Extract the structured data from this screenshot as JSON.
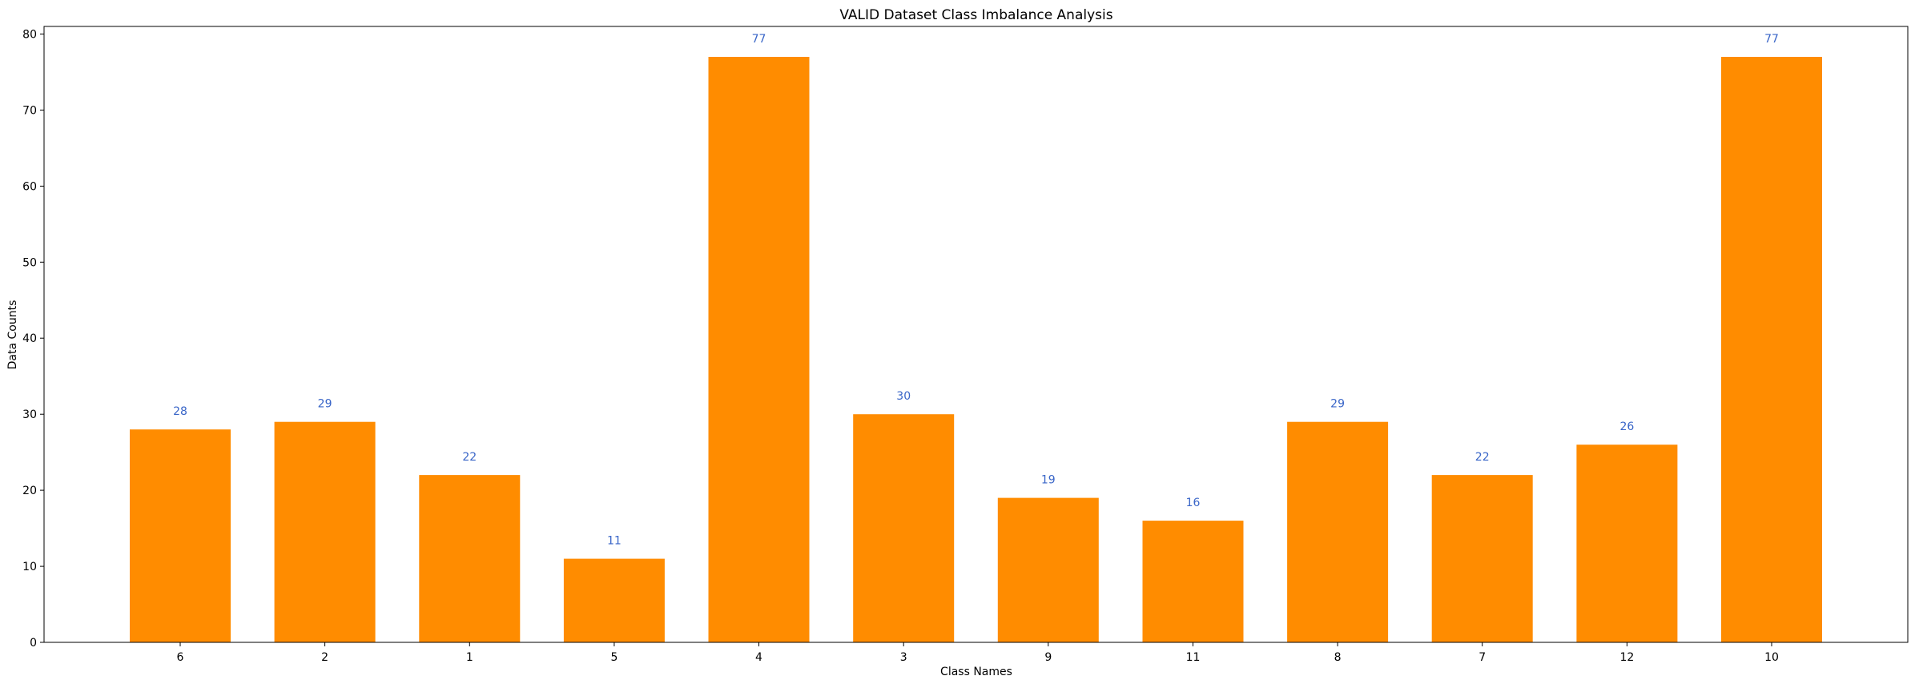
{
  "chart_data": {
    "type": "bar",
    "title": "VALID Dataset Class Imbalance Analysis",
    "xlabel": "Class Names",
    "ylabel": "Data Counts",
    "categories": [
      "6",
      "2",
      "1",
      "5",
      "4",
      "3",
      "9",
      "11",
      "8",
      "7",
      "12",
      "10"
    ],
    "values": [
      28,
      29,
      22,
      11,
      77,
      30,
      19,
      16,
      29,
      22,
      26,
      77
    ],
    "ylim": [
      0,
      81
    ],
    "yticks": [
      0,
      10,
      20,
      30,
      40,
      50,
      60,
      70,
      80
    ],
    "grid": false,
    "legend": null,
    "bar_color": "#ff8c00",
    "value_label_color": "#3a66c8"
  }
}
